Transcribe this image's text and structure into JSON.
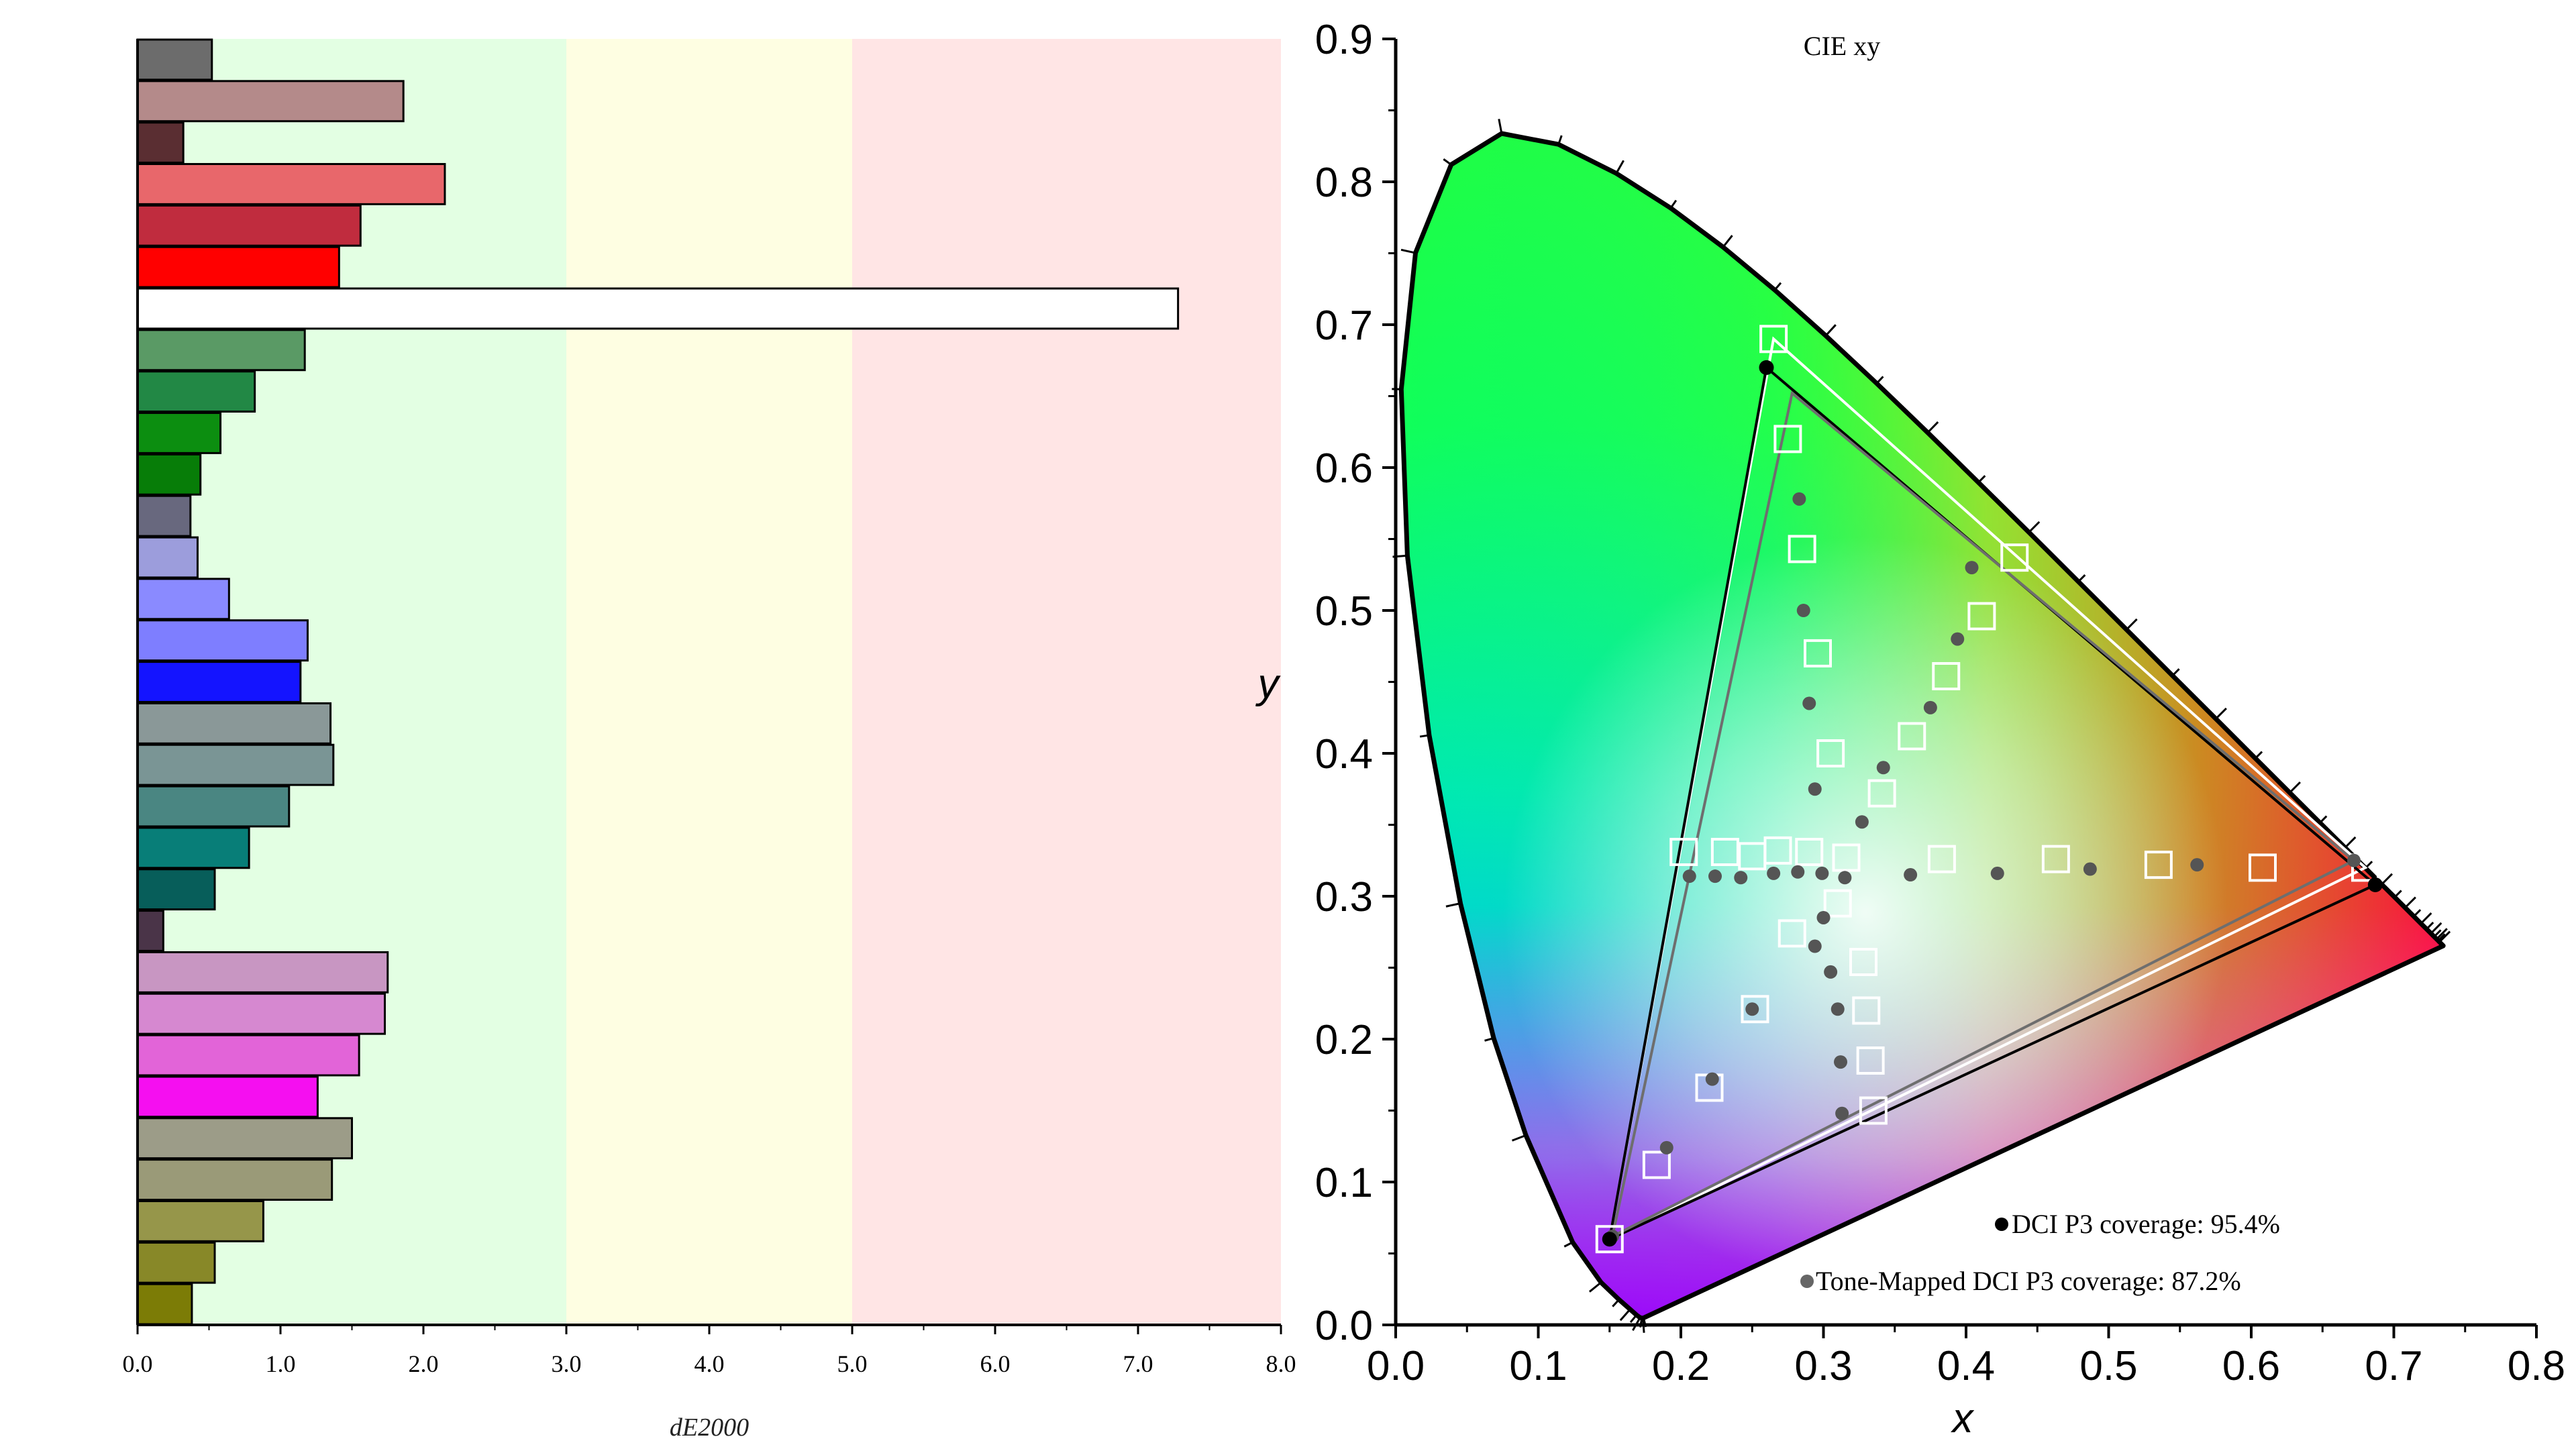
{
  "chart_data": [
    {
      "type": "bar",
      "orientation": "horizontal",
      "xlabel": "dE2000",
      "xlim": [
        0,
        8
      ],
      "xticks": [
        "0.0",
        "1.0",
        "2.0",
        "3.0",
        "4.0",
        "5.0",
        "6.0",
        "7.0",
        "8.0"
      ],
      "bands": [
        {
          "from": 0,
          "to": 3,
          "color": "#e3ffe3"
        },
        {
          "from": 3,
          "to": 5,
          "color": "#fefee2"
        },
        {
          "from": 5,
          "to": 8,
          "color": "#ffe5e5"
        }
      ],
      "bars": [
        {
          "value": 0.52,
          "color": "#6c6c6c"
        },
        {
          "value": 1.86,
          "color": "#b48a8a"
        },
        {
          "value": 0.32,
          "color": "#5a2e32"
        },
        {
          "value": 2.15,
          "color": "#e8676b"
        },
        {
          "value": 1.56,
          "color": "#c02c3e"
        },
        {
          "value": 1.41,
          "color": "#ff0000"
        },
        {
          "value": 7.28,
          "color": "#ffffff"
        },
        {
          "value": 1.17,
          "color": "#5a9a65"
        },
        {
          "value": 0.82,
          "color": "#228845"
        },
        {
          "value": 0.58,
          "color": "#0c8e10"
        },
        {
          "value": 0.44,
          "color": "#077d08"
        },
        {
          "value": 0.37,
          "color": "#68687e"
        },
        {
          "value": 0.42,
          "color": "#9c9ddc"
        },
        {
          "value": 0.64,
          "color": "#8a8aff"
        },
        {
          "value": 1.19,
          "color": "#7e7eff"
        },
        {
          "value": 1.14,
          "color": "#1414ff"
        },
        {
          "value": 1.35,
          "color": "#8a9898"
        },
        {
          "value": 1.37,
          "color": "#7a9595"
        },
        {
          "value": 1.06,
          "color": "#4a8682"
        },
        {
          "value": 0.78,
          "color": "#087e78"
        },
        {
          "value": 0.54,
          "color": "#075e5a"
        },
        {
          "value": 0.18,
          "color": "#4a3448"
        },
        {
          "value": 1.75,
          "color": "#c896c2"
        },
        {
          "value": 1.73,
          "color": "#d688d0"
        },
        {
          "value": 1.55,
          "color": "#e264d8"
        },
        {
          "value": 1.26,
          "color": "#f50ff0"
        },
        {
          "value": 1.5,
          "color": "#9c9c88"
        },
        {
          "value": 1.36,
          "color": "#9a9a78"
        },
        {
          "value": 0.88,
          "color": "#96964a"
        },
        {
          "value": 0.54,
          "color": "#888828"
        },
        {
          "value": 0.38,
          "color": "#7c7c06"
        }
      ]
    },
    {
      "type": "scatter",
      "title": "CIE xy",
      "xlabel": "x",
      "ylabel": "y",
      "xlim": [
        0,
        0.8
      ],
      "ylim": [
        0,
        0.9
      ],
      "xticks": [
        "0.0",
        "0.1",
        "0.2",
        "0.3",
        "0.4",
        "0.5",
        "0.6",
        "0.7",
        "0.8"
      ],
      "yticks": [
        "0.0",
        "0.1",
        "0.2",
        "0.3",
        "0.4",
        "0.5",
        "0.6",
        "0.7",
        "0.8",
        "0.9"
      ],
      "spectral_locus": [
        [
          0.1741,
          0.005
        ],
        [
          0.1738,
          0.0049
        ],
        [
          0.1733,
          0.0048
        ],
        [
          0.1726,
          0.0048
        ],
        [
          0.1714,
          0.0051
        ],
        [
          0.1689,
          0.0069
        ],
        [
          0.1644,
          0.0109
        ],
        [
          0.1566,
          0.0177
        ],
        [
          0.144,
          0.0297
        ],
        [
          0.1241,
          0.0578
        ],
        [
          0.0913,
          0.1327
        ],
        [
          0.0687,
          0.2007
        ],
        [
          0.0454,
          0.295
        ],
        [
          0.0235,
          0.4127
        ],
        [
          0.0082,
          0.5384
        ],
        [
          0.0039,
          0.6548
        ],
        [
          0.0139,
          0.7502
        ],
        [
          0.0389,
          0.812
        ],
        [
          0.0743,
          0.8338
        ],
        [
          0.1142,
          0.8262
        ],
        [
          0.1547,
          0.8059
        ],
        [
          0.1929,
          0.7816
        ],
        [
          0.2296,
          0.7543
        ],
        [
          0.2658,
          0.7243
        ],
        [
          0.3016,
          0.6923
        ],
        [
          0.3373,
          0.6589
        ],
        [
          0.3731,
          0.6245
        ],
        [
          0.4087,
          0.5896
        ],
        [
          0.4441,
          0.5547
        ],
        [
          0.4788,
          0.5202
        ],
        [
          0.5125,
          0.4866
        ],
        [
          0.5448,
          0.4544
        ],
        [
          0.5752,
          0.4242
        ],
        [
          0.6029,
          0.3965
        ],
        [
          0.627,
          0.3725
        ],
        [
          0.6482,
          0.3514
        ],
        [
          0.6658,
          0.334
        ],
        [
          0.6801,
          0.3197
        ],
        [
          0.6915,
          0.3083
        ],
        [
          0.7006,
          0.2993
        ],
        [
          0.7079,
          0.292
        ],
        [
          0.714,
          0.2859
        ],
        [
          0.719,
          0.2809
        ],
        [
          0.723,
          0.277
        ],
        [
          0.726,
          0.274
        ],
        [
          0.7283,
          0.2717
        ],
        [
          0.73,
          0.27
        ],
        [
          0.7311,
          0.2689
        ],
        [
          0.732,
          0.268
        ],
        [
          0.7347,
          0.2653
        ]
      ],
      "reference_gamut": {
        "name": "DCI P3",
        "points": [
          [
            0.68,
            0.32
          ],
          [
            0.265,
            0.69
          ],
          [
            0.15,
            0.06
          ]
        ],
        "color": "#ffffff"
      },
      "measured_gamut": {
        "points": [
          [
            0.687,
            0.308
          ],
          [
            0.26,
            0.67
          ],
          [
            0.15,
            0.06
          ]
        ],
        "color": "#000000"
      },
      "tonemapped_gamut": {
        "points": [
          [
            0.672,
            0.325
          ],
          [
            0.278,
            0.652
          ],
          [
            0.152,
            0.062
          ]
        ],
        "color": "#6e6e6e"
      },
      "target_squares": [
        [
          0.68,
          0.32
        ],
        [
          0.608,
          0.32
        ],
        [
          0.535,
          0.322
        ],
        [
          0.463,
          0.326
        ],
        [
          0.383,
          0.326
        ],
        [
          0.316,
          0.327
        ],
        [
          0.434,
          0.537
        ],
        [
          0.411,
          0.496
        ],
        [
          0.386,
          0.454
        ],
        [
          0.362,
          0.412
        ],
        [
          0.341,
          0.372
        ],
        [
          0.265,
          0.69
        ],
        [
          0.275,
          0.62
        ],
        [
          0.285,
          0.543
        ],
        [
          0.296,
          0.47
        ],
        [
          0.305,
          0.4
        ],
        [
          0.231,
          0.331
        ],
        [
          0.25,
          0.328
        ],
        [
          0.268,
          0.332
        ],
        [
          0.29,
          0.331
        ],
        [
          0.15,
          0.06
        ],
        [
          0.183,
          0.112
        ],
        [
          0.22,
          0.166
        ],
        [
          0.252,
          0.221
        ],
        [
          0.278,
          0.274
        ],
        [
          0.31,
          0.295
        ],
        [
          0.328,
          0.254
        ],
        [
          0.33,
          0.22
        ],
        [
          0.333,
          0.185
        ],
        [
          0.335,
          0.15
        ],
        [
          0.202,
          0.331
        ]
      ],
      "measured_dots": [
        [
          0.672,
          0.325
        ],
        [
          0.562,
          0.322
        ],
        [
          0.487,
          0.319
        ],
        [
          0.422,
          0.316
        ],
        [
          0.361,
          0.315
        ],
        [
          0.315,
          0.313
        ],
        [
          0.404,
          0.53
        ],
        [
          0.394,
          0.48
        ],
        [
          0.375,
          0.432
        ],
        [
          0.342,
          0.39
        ],
        [
          0.327,
          0.352
        ],
        [
          0.283,
          0.578
        ],
        [
          0.286,
          0.5
        ],
        [
          0.29,
          0.435
        ],
        [
          0.294,
          0.375
        ],
        [
          0.206,
          0.314
        ],
        [
          0.224,
          0.314
        ],
        [
          0.242,
          0.313
        ],
        [
          0.265,
          0.316
        ],
        [
          0.282,
          0.317
        ],
        [
          0.299,
          0.316
        ],
        [
          0.3,
          0.285
        ],
        [
          0.294,
          0.265
        ],
        [
          0.305,
          0.247
        ],
        [
          0.31,
          0.221
        ],
        [
          0.312,
          0.184
        ],
        [
          0.313,
          0.148
        ],
        [
          0.222,
          0.172
        ],
        [
          0.19,
          0.124
        ],
        [
          0.25,
          0.221
        ],
        [
          0.152,
          0.062
        ]
      ],
      "legend": [
        {
          "label": "DCI P3 coverage: 95.4%",
          "color": "#000000"
        },
        {
          "label": "Tone-Mapped DCI P3 coverage: 87.2%",
          "color": "#666666"
        }
      ]
    }
  ]
}
